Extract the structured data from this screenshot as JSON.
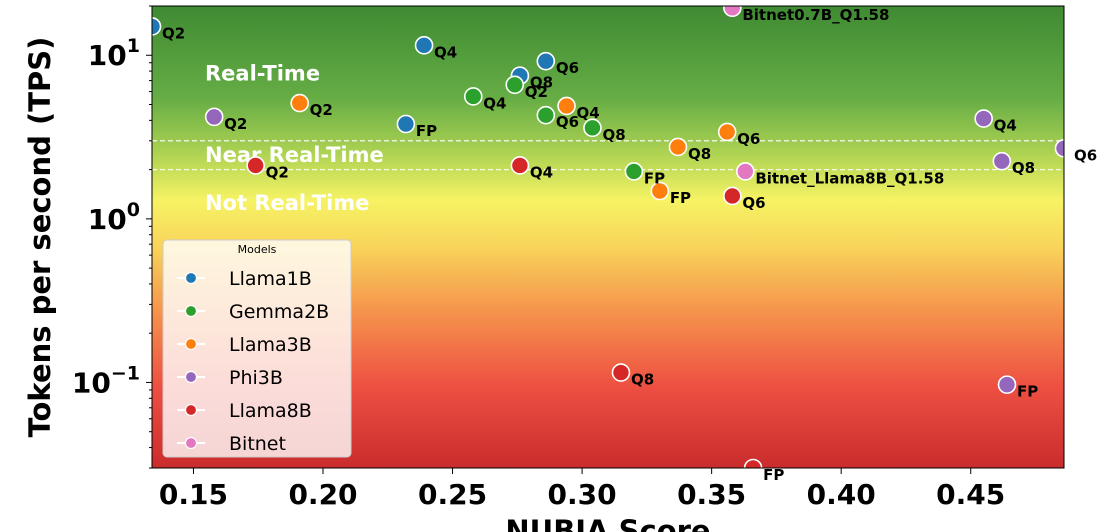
{
  "chart_data": {
    "type": "scatter",
    "xlabel": "NUBIA Score",
    "ylabel": "Tokens per second (TPS)",
    "xlim": [
      0.134,
      0.486
    ],
    "ylim": [
      0.03,
      20
    ],
    "yscale": "log",
    "xticks": [
      {
        "value": 0.15,
        "label": "0.15"
      },
      {
        "value": 0.2,
        "label": "0.20"
      },
      {
        "value": 0.25,
        "label": "0.25"
      },
      {
        "value": 0.3,
        "label": "0.30"
      },
      {
        "value": 0.35,
        "label": "0.35"
      },
      {
        "value": 0.4,
        "label": "0.40"
      },
      {
        "value": 0.45,
        "label": "0.45"
      }
    ],
    "yticks": [
      {
        "value": 10,
        "base": "10",
        "exp": "1"
      },
      {
        "value": 1,
        "base": "10",
        "exp": "0"
      },
      {
        "value": 0.1,
        "base": "10",
        "exp": "−1"
      }
    ],
    "thresholds": [
      3.0,
      2.0
    ],
    "zones": [
      "Real-Time",
      "Near Real-Time",
      "Not Real-Time"
    ],
    "background": "vertical gradient green (top) to yellow to red (bottom)",
    "grid": false,
    "legend": {
      "title": "Models",
      "position": "bottom-left",
      "entries": [
        "Llama1B",
        "Gemma2B",
        "Llama3B",
        "Phi3B",
        "Llama8B",
        "Bitnet"
      ]
    },
    "series": [
      {
        "name": "Llama1B",
        "color": "#1f77b4",
        "points": [
          {
            "x": 0.134,
            "y": 15.0,
            "label": "Q2"
          },
          {
            "x": 0.239,
            "y": 11.5,
            "label": "Q4"
          },
          {
            "x": 0.286,
            "y": 9.2,
            "label": "Q6"
          },
          {
            "x": 0.276,
            "y": 7.5,
            "label": "Q8"
          },
          {
            "x": 0.232,
            "y": 3.8,
            "label": "FP"
          }
        ]
      },
      {
        "name": "Gemma2B",
        "color": "#2ca02c",
        "points": [
          {
            "x": 0.274,
            "y": 6.6,
            "label": "Q2"
          },
          {
            "x": 0.258,
            "y": 5.6,
            "label": "Q4"
          },
          {
            "x": 0.286,
            "y": 4.3,
            "label": "Q6"
          },
          {
            "x": 0.304,
            "y": 3.6,
            "label": "Q8"
          },
          {
            "x": 0.32,
            "y": 1.95,
            "label": "FP"
          }
        ]
      },
      {
        "name": "Llama3B",
        "color": "#ff7f0e",
        "points": [
          {
            "x": 0.191,
            "y": 5.1,
            "label": "Q2"
          },
          {
            "x": 0.294,
            "y": 4.9,
            "label": "Q4"
          },
          {
            "x": 0.356,
            "y": 3.4,
            "label": "Q6"
          },
          {
            "x": 0.337,
            "y": 2.75,
            "label": "Q8"
          },
          {
            "x": 0.33,
            "y": 1.48,
            "label": "FP"
          }
        ]
      },
      {
        "name": "Phi3B",
        "color": "#9467bd",
        "points": [
          {
            "x": 0.158,
            "y": 4.2,
            "label": "Q2"
          },
          {
            "x": 0.455,
            "y": 4.1,
            "label": "Q4"
          },
          {
            "x": 0.486,
            "y": 2.7,
            "label": "Q6"
          },
          {
            "x": 0.462,
            "y": 2.25,
            "label": "Q8"
          },
          {
            "x": 0.464,
            "y": 0.097,
            "label": "FP"
          }
        ]
      },
      {
        "name": "Llama8B",
        "color": "#d62728",
        "points": [
          {
            "x": 0.174,
            "y": 2.12,
            "label": "Q2"
          },
          {
            "x": 0.276,
            "y": 2.12,
            "label": "Q4"
          },
          {
            "x": 0.358,
            "y": 1.38,
            "label": "Q6"
          },
          {
            "x": 0.315,
            "y": 0.115,
            "label": "Q8"
          },
          {
            "x": 0.366,
            "y": 0.03,
            "label": "FP"
          }
        ]
      },
      {
        "name": "Bitnet",
        "color": "#e377c2",
        "points": [
          {
            "x": 0.358,
            "y": 19.5,
            "label": "Bitnet0.7B_Q1.58"
          },
          {
            "x": 0.363,
            "y": 1.95,
            "label": "Bitnet_Llama8B_Q1.58"
          }
        ]
      }
    ]
  }
}
